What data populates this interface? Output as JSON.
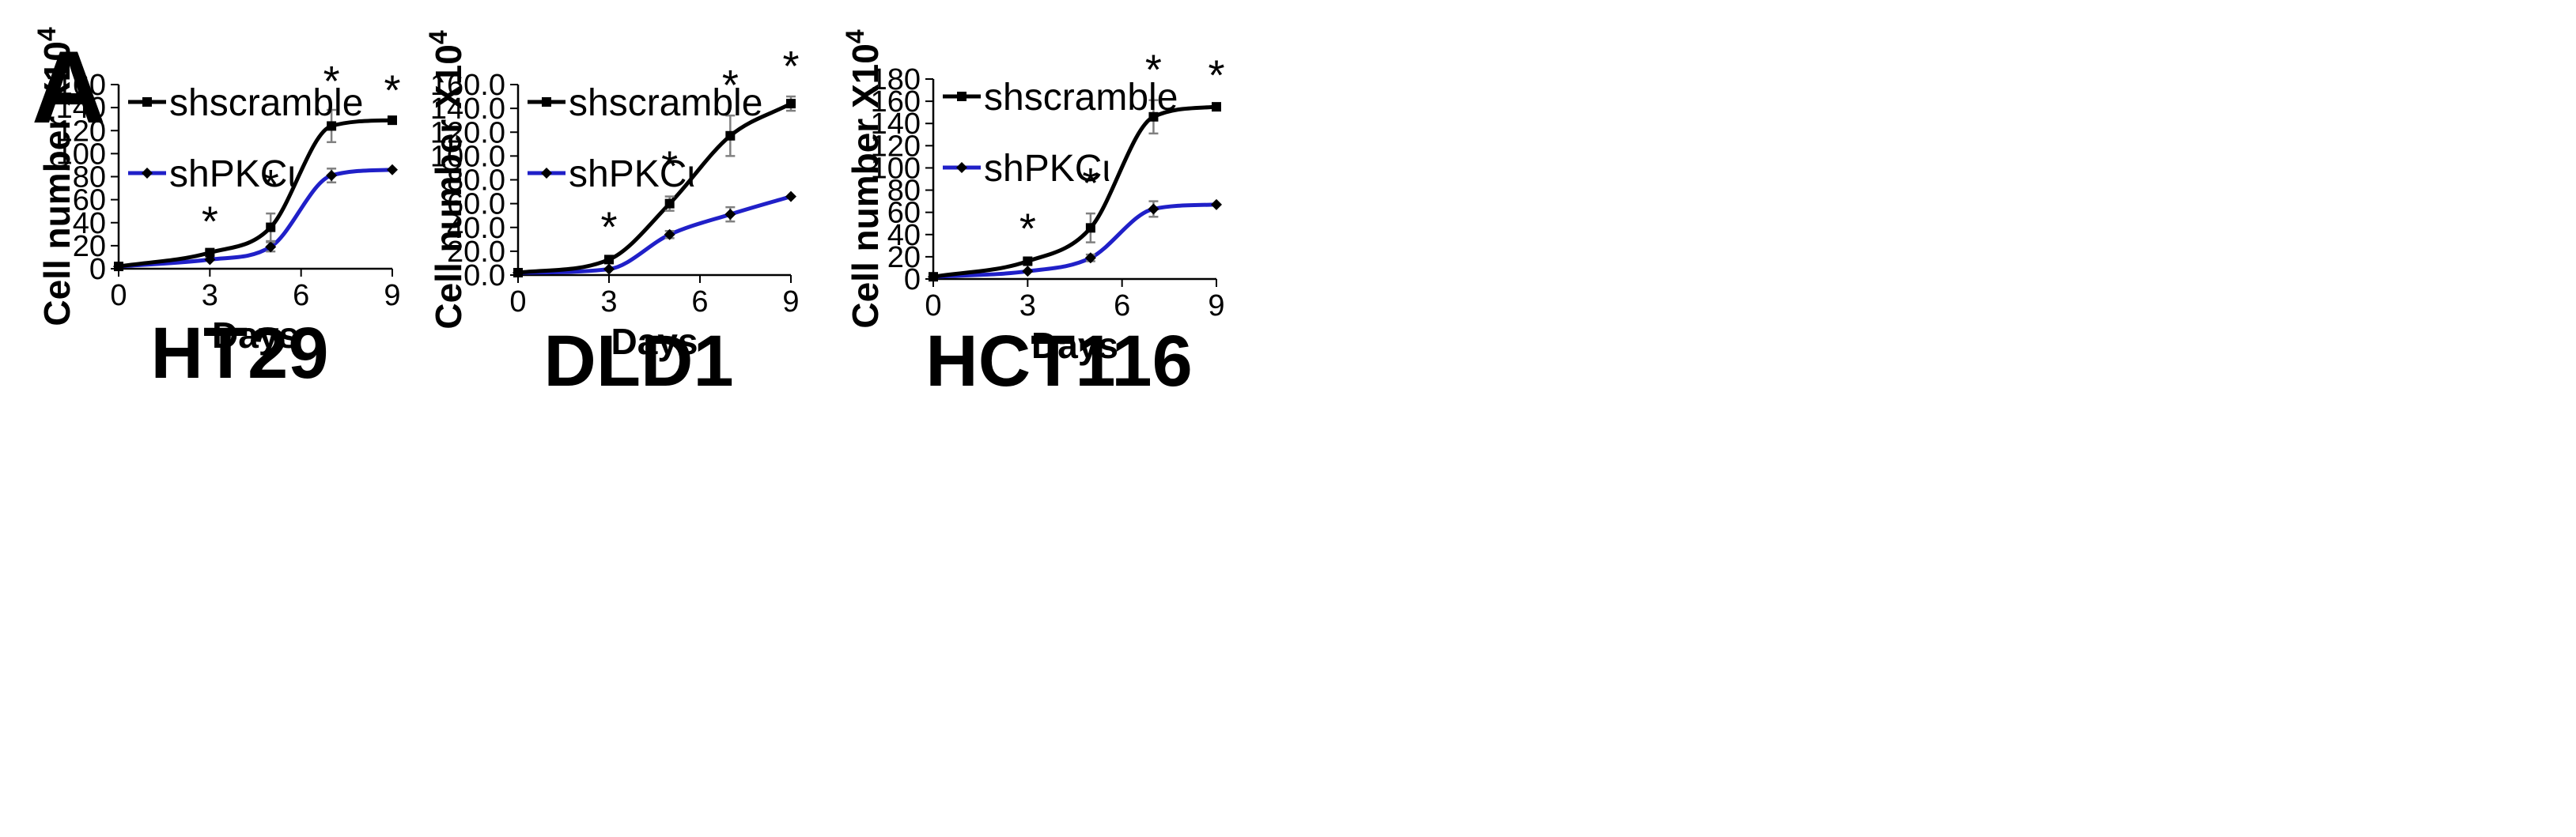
{
  "panel_label": "A",
  "colors": {
    "shscramble": "#000000",
    "shPKC": "#2020c8",
    "axis": "#000000",
    "error_bar": "#808080"
  },
  "chart_data": [
    {
      "type": "line",
      "title": "HT29",
      "xlabel": "Days",
      "ylabel": "Cell number X10",
      "ylabel_sup": "4",
      "xlim": [
        0,
        9
      ],
      "ylim": [
        0,
        160
      ],
      "x_ticks": [
        0,
        3,
        6,
        9
      ],
      "x_tick_labels": [
        "0",
        "3",
        "6",
        "9"
      ],
      "y_ticks": [
        0,
        20,
        40,
        60,
        80,
        100,
        120,
        140,
        160
      ],
      "y_tick_labels": [
        "0",
        "20",
        "40",
        "60",
        "80",
        "100",
        "120",
        "140",
        "160"
      ],
      "grid": false,
      "legend_position": "top-left",
      "significance": [
        {
          "x": 3,
          "label": "*"
        },
        {
          "x": 5,
          "label": "*"
        },
        {
          "x": 7,
          "label": "*"
        },
        {
          "x": 9,
          "label": "*"
        }
      ],
      "series": [
        {
          "name": "shscramble",
          "x": [
            0,
            3,
            5,
            7,
            9
          ],
          "y": [
            2,
            14,
            36,
            124,
            129
          ],
          "err": [
            1,
            2,
            12,
            14,
            1
          ]
        },
        {
          "name": "shPKCι",
          "x": [
            0,
            3,
            5,
            7,
            9
          ],
          "y": [
            2,
            8,
            19,
            81,
            86
          ],
          "err": [
            1,
            1,
            4,
            6,
            1
          ]
        }
      ]
    },
    {
      "type": "line",
      "title": "DLD1",
      "xlabel": "Days",
      "ylabel": "Cell number X10",
      "ylabel_sup": "4",
      "xlim": [
        0,
        9
      ],
      "ylim": [
        0,
        160
      ],
      "x_ticks": [
        0,
        3,
        6,
        9
      ],
      "x_tick_labels": [
        "0",
        "3",
        "6",
        "9"
      ],
      "y_ticks": [
        0,
        20,
        40,
        60,
        80,
        100,
        120,
        140,
        160
      ],
      "y_tick_labels": [
        "0.0",
        "20.0",
        "40.0",
        "60.0",
        "80.0",
        "100.0",
        "120.0",
        "140.0",
        "160.0"
      ],
      "grid": false,
      "legend_position": "top-left",
      "significance": [
        {
          "x": 3,
          "label": "*"
        },
        {
          "x": 5,
          "label": "*"
        },
        {
          "x": 7,
          "label": "*"
        },
        {
          "x": 9,
          "label": "*"
        }
      ],
      "series": [
        {
          "name": "shscramble",
          "x": [
            0,
            3,
            5,
            7,
            9
          ],
          "y": [
            2,
            13,
            60,
            117,
            144
          ],
          "err": [
            1,
            2,
            6,
            17,
            6
          ]
        },
        {
          "name": "shPKCι",
          "x": [
            0,
            3,
            5,
            7,
            9
          ],
          "y": [
            2,
            5,
            34,
            51,
            66
          ],
          "err": [
            1,
            1,
            3,
            6,
            1
          ]
        }
      ]
    },
    {
      "type": "line",
      "title": "HCT116",
      "xlabel": "Days",
      "ylabel": "Cell number X10",
      "ylabel_sup": "4",
      "xlim": [
        0,
        9
      ],
      "ylim": [
        0,
        180
      ],
      "x_ticks": [
        0,
        3,
        6,
        9
      ],
      "x_tick_labels": [
        "0",
        "3",
        "6",
        "9"
      ],
      "y_ticks": [
        0,
        20,
        40,
        60,
        80,
        100,
        120,
        140,
        160,
        180
      ],
      "y_tick_labels": [
        "0",
        "20",
        "40",
        "60",
        "80",
        "100",
        "120",
        "140",
        "160",
        "180"
      ],
      "grid": false,
      "legend_position": "top-left",
      "significance": [
        {
          "x": 3,
          "label": "*"
        },
        {
          "x": 5,
          "label": "*"
        },
        {
          "x": 7,
          "label": "*"
        },
        {
          "x": 9,
          "label": "*"
        }
      ],
      "series": [
        {
          "name": "shscramble",
          "x": [
            0,
            3,
            5,
            7,
            9
          ],
          "y": [
            2,
            16,
            46,
            146,
            155
          ],
          "err": [
            1,
            2,
            13,
            15,
            1
          ]
        },
        {
          "name": "shPKCι",
          "x": [
            0,
            3,
            5,
            7,
            9
          ],
          "y": [
            2,
            7,
            19,
            63,
            67
          ],
          "err": [
            1,
            1,
            3,
            7,
            1
          ]
        }
      ]
    }
  ]
}
